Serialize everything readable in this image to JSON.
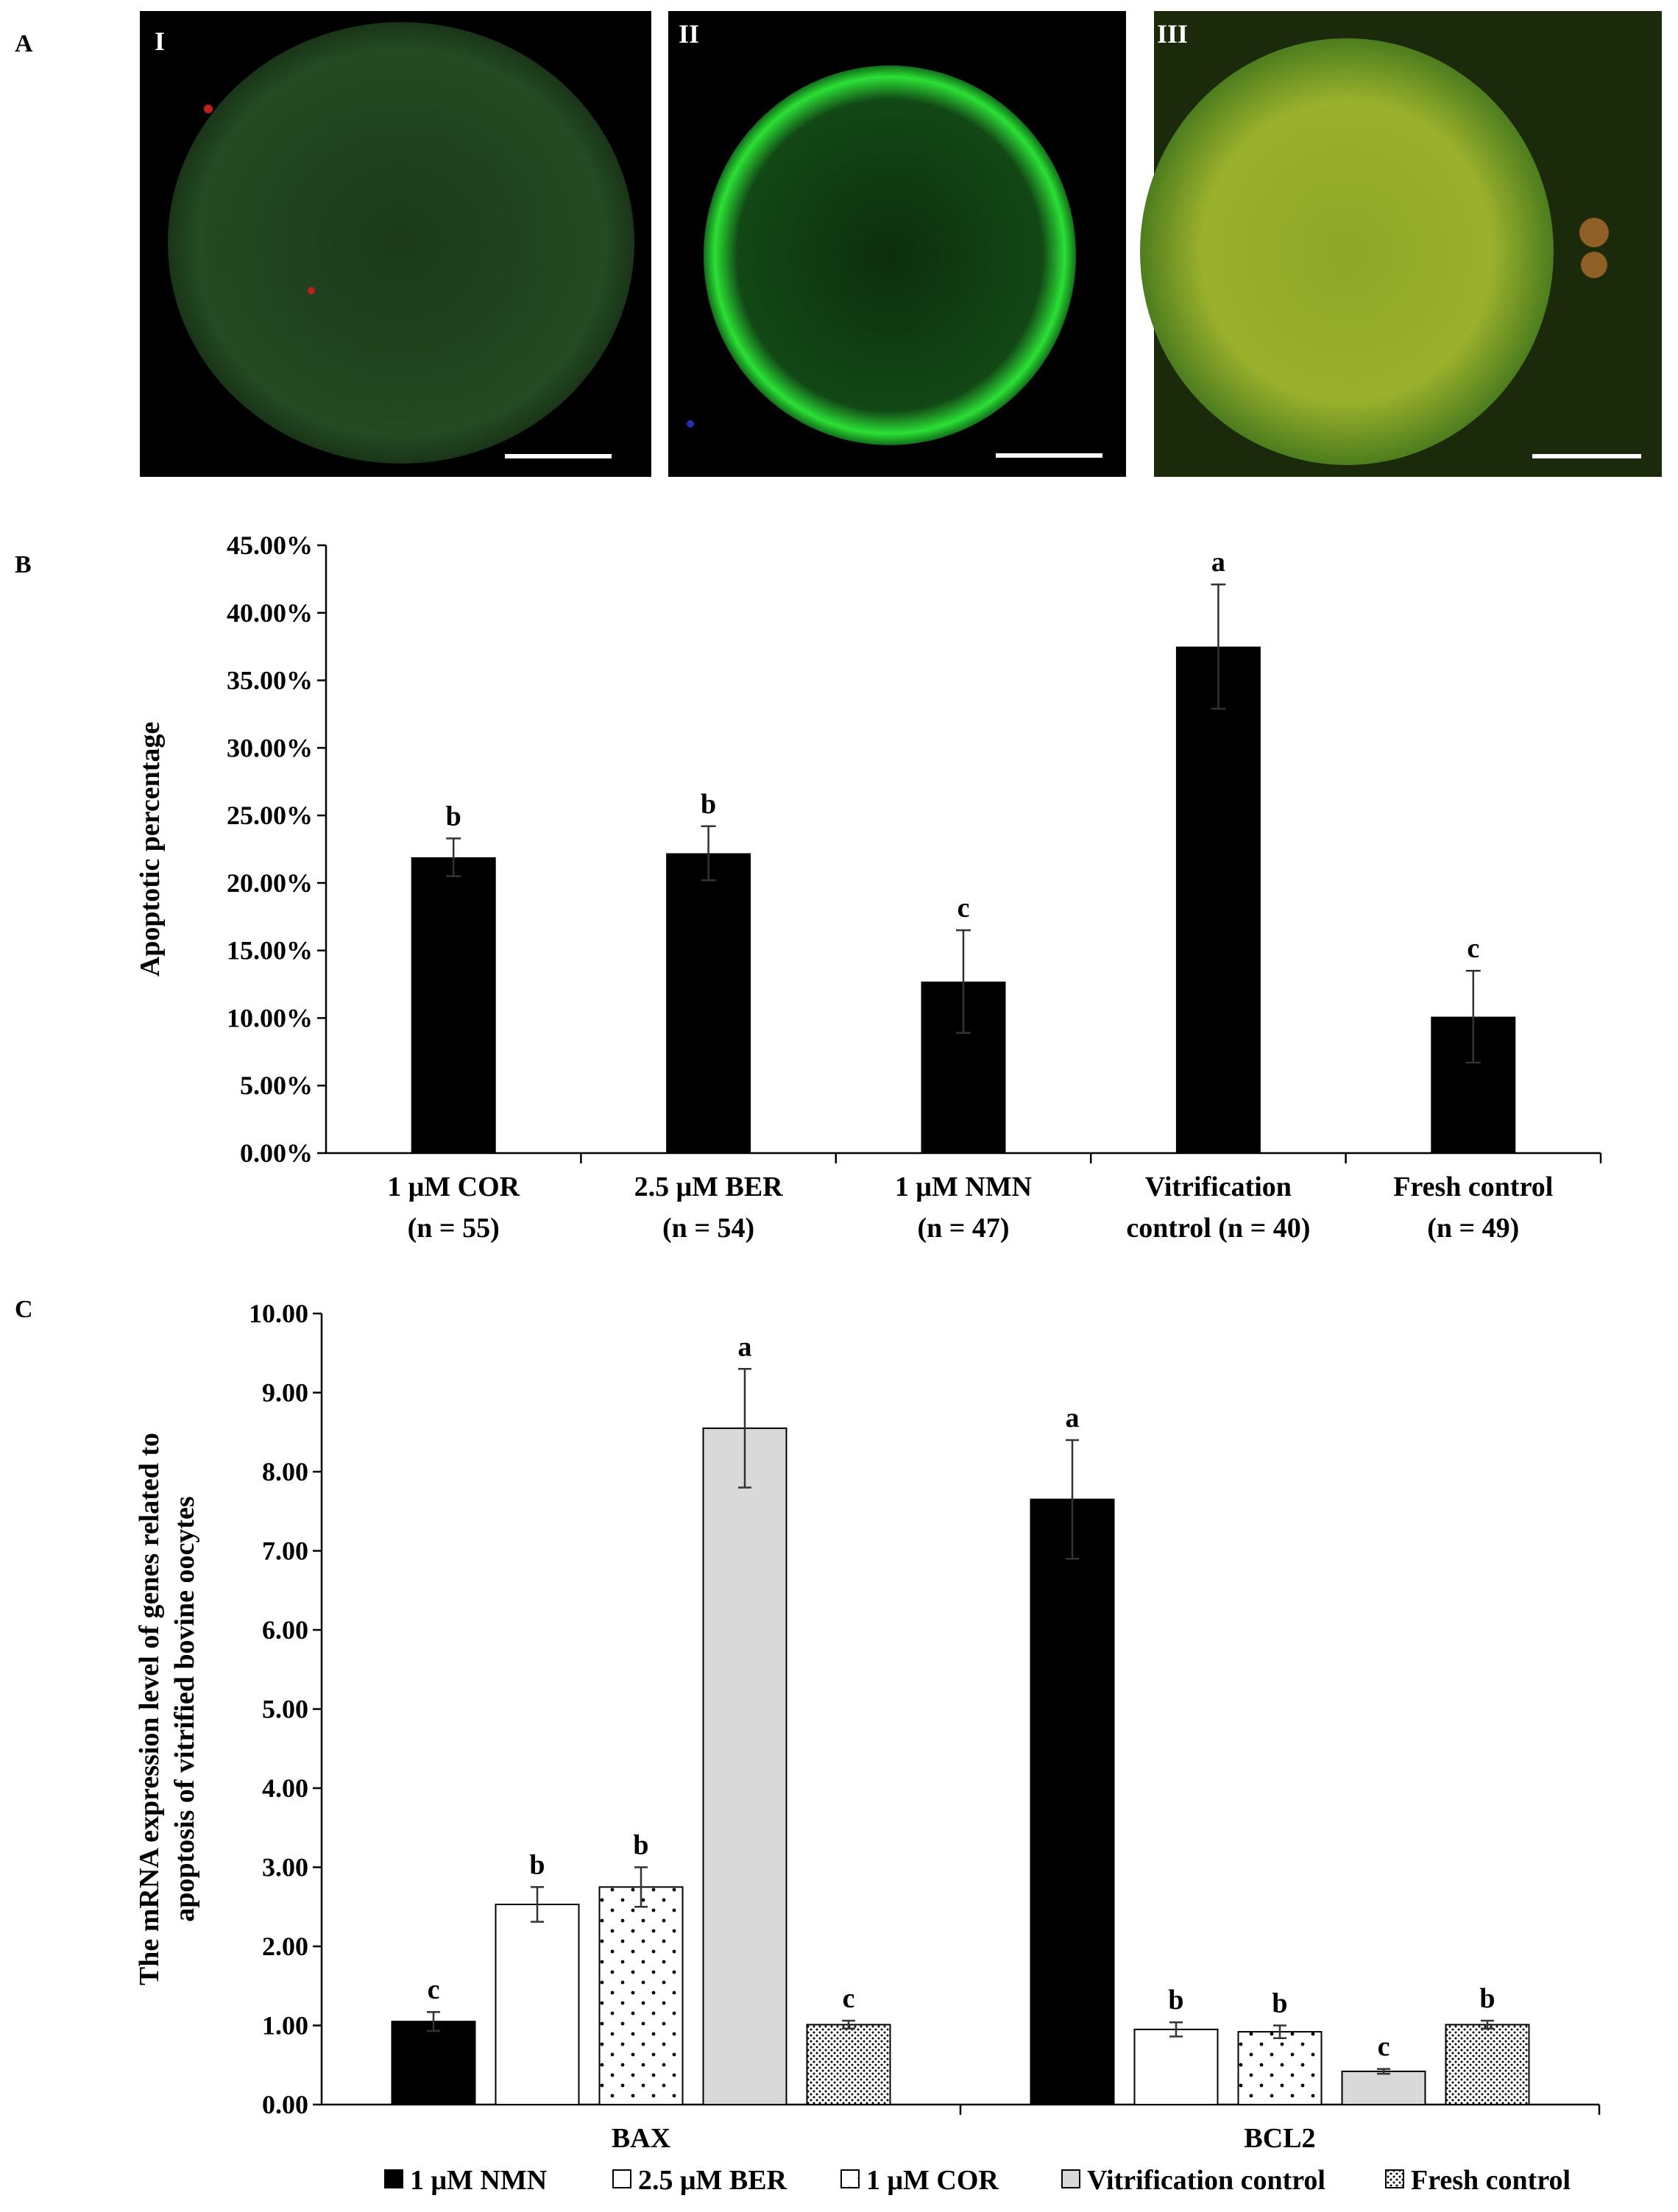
{
  "panels": {
    "a": {
      "letter": "A",
      "images": [
        {
          "label": "I",
          "tone": "#1f3a1c",
          "rim": "#245a24",
          "scale_bar": true,
          "description_icon": "oocyte-dim-green"
        },
        {
          "label": "II",
          "tone": "#0e2a0e",
          "rim": "#2bd431",
          "scale_bar": true,
          "description_icon": "oocyte-bright-rim"
        },
        {
          "label": "III",
          "tone": "#7f9a22",
          "rim": "#3f7a1e",
          "scale_bar": true,
          "description_icon": "oocyte-yellow-green"
        }
      ]
    },
    "b": {
      "letter": "B"
    },
    "c": {
      "letter": "C"
    }
  },
  "chart_data": [
    {
      "id": "B",
      "type": "bar",
      "ylabel": "Apoptotic percentage",
      "ylim": [
        0,
        0.45
      ],
      "yticks": [
        "0.00%",
        "5.00%",
        "10.00%",
        "15.00%",
        "20.00%",
        "25.00%",
        "30.00%",
        "35.00%",
        "40.00%",
        "45.00%"
      ],
      "categories": [
        [
          "1 μM COR",
          "(n = 55)"
        ],
        [
          "2.5 μM BER",
          "(n = 54)"
        ],
        [
          "1 μM NMN",
          "(n = 47)"
        ],
        [
          "Vitrification",
          "control (n = 40)"
        ],
        [
          "Fresh control",
          "(n = 49)"
        ]
      ],
      "values": [
        0.219,
        0.222,
        0.127,
        0.375,
        0.101
      ],
      "errors": [
        0.014,
        0.02,
        0.038,
        0.046,
        0.034
      ],
      "letters": [
        "b",
        "b",
        "c",
        "a",
        "c"
      ],
      "bar_color": "#000000"
    },
    {
      "id": "C",
      "type": "bar",
      "ylabel": [
        "The mRNA expression level of genes related to",
        "apoptosis of vitrified bovine oocytes"
      ],
      "ylim": [
        0,
        10
      ],
      "yticks": [
        "0.00",
        "1.00",
        "2.00",
        "3.00",
        "4.00",
        "5.00",
        "6.00",
        "7.00",
        "8.00",
        "9.00",
        "10.00"
      ],
      "categories": [
        "BAX",
        "BCL2"
      ],
      "series": [
        {
          "name": "1 μM NMN",
          "fill": "solid-black",
          "values": [
            1.05,
            7.65
          ],
          "errors": [
            0.12,
            0.75
          ],
          "letters": [
            "c",
            "a"
          ]
        },
        {
          "name": "2.5 μM BER",
          "fill": "white",
          "values": [
            2.53,
            0.95
          ],
          "errors": [
            0.22,
            0.09
          ],
          "letters": [
            "b",
            "b"
          ]
        },
        {
          "name": "1 μM COR",
          "fill": "sparse-dots",
          "values": [
            2.75,
            0.92
          ],
          "errors": [
            0.25,
            0.08
          ],
          "letters": [
            "b",
            "b"
          ]
        },
        {
          "name": "Vitrification control",
          "fill": "light-gray",
          "values": [
            8.55,
            0.42
          ],
          "errors": [
            0.75,
            0.03
          ],
          "letters": [
            "a",
            "c"
          ]
        },
        {
          "name": "Fresh control",
          "fill": "dense-dots",
          "values": [
            1.01,
            1.01
          ],
          "errors": [
            0.05,
            0.05
          ],
          "letters": [
            "c",
            "b"
          ]
        }
      ],
      "legend_position": "bottom"
    }
  ]
}
